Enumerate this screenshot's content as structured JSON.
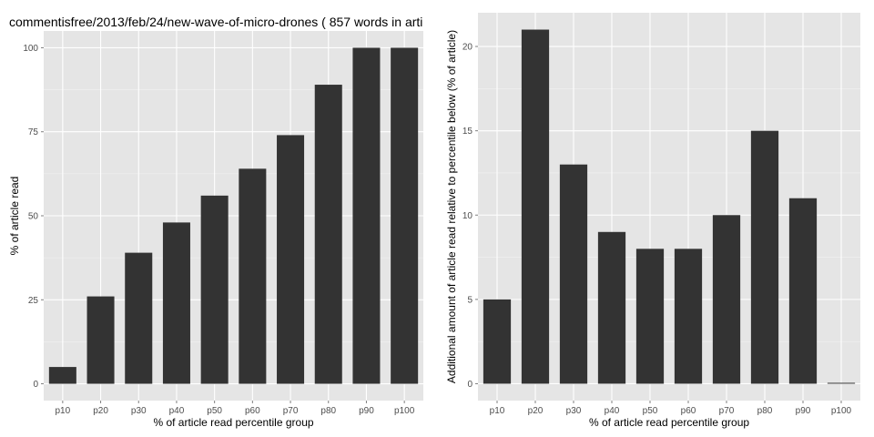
{
  "chart_data": [
    {
      "type": "bar",
      "title": "commentisfree/2013/feb/24/new-wave-of-micro-drones ( 857 words in arti",
      "xlabel": "% of article read percentile group",
      "ylabel": "% of article read",
      "categories": [
        "p10",
        "p20",
        "p30",
        "p40",
        "p50",
        "p60",
        "p70",
        "p80",
        "p90",
        "p100"
      ],
      "values": [
        5,
        26,
        39,
        48,
        56,
        64,
        74,
        89,
        100,
        100
      ],
      "ylim": [
        -5,
        105
      ],
      "yticks": [
        0,
        25,
        50,
        75,
        100
      ],
      "grid": true
    },
    {
      "type": "bar",
      "title": "",
      "xlabel": "% of article read percentile group",
      "ylabel": "Additional amount of article read relative to percentile below (% of article)",
      "categories": [
        "p10",
        "p20",
        "p30",
        "p40",
        "p50",
        "p60",
        "p70",
        "p80",
        "p90",
        "p100"
      ],
      "values": [
        5,
        21,
        13,
        9,
        8,
        8,
        10,
        15,
        11,
        0
      ],
      "ylim": [
        -1,
        22
      ],
      "yticks": [
        0,
        5,
        10,
        15,
        20
      ],
      "grid": true
    }
  ],
  "colors": {
    "panel_background": "#e5e5e5",
    "grid_major": "#ffffff",
    "grid_minor": "#f2f2f2",
    "bar_fill": "#333333",
    "tick_text": "#4d4d4d"
  }
}
